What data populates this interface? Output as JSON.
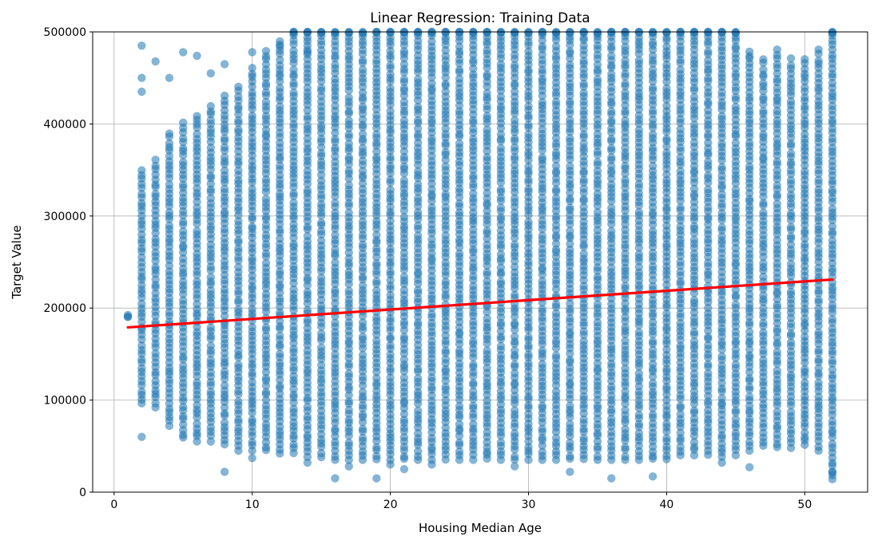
{
  "chart_data": {
    "type": "scatter",
    "title": "Linear Regression: Training Data",
    "xlabel": "Housing Median Age",
    "ylabel": "Target Value",
    "xlim": [
      -1.55,
      54.55
    ],
    "ylim": [
      0,
      500000
    ],
    "xticks": [
      0,
      10,
      20,
      30,
      40,
      50
    ],
    "yticks": [
      0,
      100000,
      200000,
      300000,
      400000,
      500000
    ],
    "grid": true,
    "series": [
      {
        "kind": "scatter",
        "color": "#1f77b4",
        "alpha": 0.55,
        "x_ages": [
          1,
          2,
          3,
          4,
          5,
          6,
          7,
          8,
          9,
          10,
          11,
          12,
          13,
          14,
          15,
          16,
          17,
          18,
          19,
          20,
          21,
          22,
          23,
          24,
          25,
          26,
          27,
          28,
          29,
          30,
          31,
          32,
          33,
          34,
          35,
          36,
          37,
          38,
          39,
          40,
          41,
          42,
          43,
          44,
          45,
          46,
          47,
          48,
          49,
          50,
          51,
          52
        ],
        "dense_low": [
          190000,
          95000,
          92000,
          72000,
          58000,
          55000,
          55000,
          52000,
          50000,
          45000,
          45000,
          42000,
          42000,
          38000,
          38000,
          35000,
          35000,
          35000,
          35000,
          35000,
          35000,
          35000,
          35000,
          35000,
          35000,
          35000,
          35000,
          35000,
          35000,
          35000,
          35000,
          35000,
          35000,
          35000,
          35000,
          35000,
          35000,
          35000,
          35000,
          35000,
          40000,
          40000,
          40000,
          38000,
          40000,
          45000,
          50000,
          48000,
          48000,
          50000,
          45000,
          18000
        ],
        "dense_high": [
          192000,
          350000,
          360000,
          390000,
          400000,
          410000,
          420000,
          430000,
          440000,
          460000,
          480000,
          490000,
          500000,
          500000,
          500000,
          500000,
          500000,
          500000,
          500000,
          500000,
          500000,
          500000,
          500000,
          500000,
          500000,
          500000,
          500000,
          500000,
          500000,
          500000,
          500000,
          500000,
          500000,
          500000,
          500000,
          500000,
          500000,
          500000,
          500000,
          500000,
          500000,
          500000,
          500000,
          500000,
          500000,
          480000,
          470000,
          480000,
          470000,
          470000,
          480000,
          500000
        ],
        "outliers": [
          [
            2,
            60000
          ],
          [
            8,
            22000
          ],
          [
            9,
            45000
          ],
          [
            10,
            37000
          ],
          [
            14,
            32000
          ],
          [
            16,
            15000
          ],
          [
            17,
            28000
          ],
          [
            19,
            15000
          ],
          [
            20,
            30000
          ],
          [
            21,
            25000
          ],
          [
            23,
            30000
          ],
          [
            29,
            28000
          ],
          [
            33,
            22000
          ],
          [
            36,
            15000
          ],
          [
            39,
            17000
          ],
          [
            44,
            32000
          ],
          [
            46,
            27000
          ],
          [
            52,
            14000
          ],
          [
            52,
            22000
          ],
          [
            2,
            435000
          ],
          [
            2,
            450000
          ],
          [
            2,
            485000
          ],
          [
            3,
            468000
          ],
          [
            4,
            450000
          ],
          [
            5,
            478000
          ],
          [
            6,
            474000
          ],
          [
            7,
            455000
          ],
          [
            8,
            465000
          ],
          [
            10,
            478000
          ],
          [
            12,
            486000
          ],
          [
            14,
            478000
          ]
        ]
      },
      {
        "kind": "line",
        "color": "#ff0000",
        "x": [
          1,
          52
        ],
        "y": [
          179000,
          231000
        ]
      }
    ]
  }
}
